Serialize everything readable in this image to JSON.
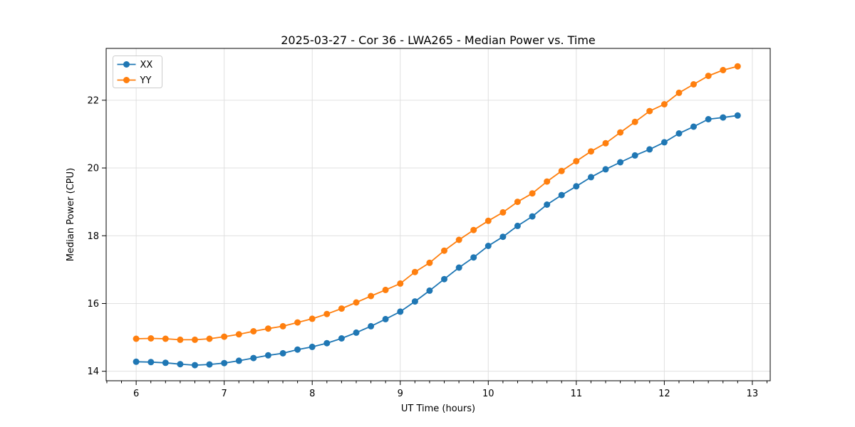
{
  "window": {
    "background": "#ffffff"
  },
  "chart_data": {
    "type": "line",
    "title": "2025-03-27 - Cor 36 - LWA265 - Median Power vs. Time",
    "xlabel": "UT Time (hours)",
    "ylabel": "Median Power (CPU)",
    "grid": true,
    "legend_position": "upper-left",
    "xlim": [
      5.659,
      13.203
    ],
    "ylim": [
      13.72,
      23.53
    ],
    "x_ticks": [
      6,
      7,
      8,
      9,
      10,
      11,
      12,
      13
    ],
    "y_ticks": [
      14,
      16,
      18,
      20,
      22
    ],
    "x_minor_tick_step": 0.1667,
    "marker": "circle",
    "x": [
      6.0,
      6.167,
      6.333,
      6.5,
      6.667,
      6.833,
      7.0,
      7.167,
      7.333,
      7.5,
      7.667,
      7.833,
      8.0,
      8.167,
      8.333,
      8.5,
      8.667,
      8.833,
      9.0,
      9.167,
      9.333,
      9.5,
      9.667,
      9.833,
      10.0,
      10.167,
      10.333,
      10.5,
      10.667,
      10.833,
      11.0,
      11.167,
      11.333,
      11.5,
      11.667,
      11.833,
      12.0,
      12.167,
      12.333,
      12.5,
      12.667,
      12.833
    ],
    "series": [
      {
        "name": "XX",
        "color": "#1f77b4",
        "values": [
          14.28,
          14.27,
          14.25,
          14.21,
          14.18,
          14.2,
          14.24,
          14.31,
          14.39,
          14.47,
          14.53,
          14.64,
          14.72,
          14.83,
          14.97,
          15.14,
          15.33,
          15.54,
          15.76,
          16.06,
          16.38,
          16.72,
          17.06,
          17.36,
          17.7,
          17.97,
          18.29,
          18.57,
          18.92,
          19.2,
          19.46,
          19.73,
          19.96,
          20.17,
          20.37,
          20.55,
          20.76,
          21.02,
          21.22,
          21.44,
          21.49,
          21.55
        ]
      },
      {
        "name": "YY",
        "color": "#ff7f0e",
        "values": [
          14.96,
          14.97,
          14.96,
          14.93,
          14.93,
          14.96,
          15.02,
          15.09,
          15.18,
          15.26,
          15.33,
          15.44,
          15.55,
          15.69,
          15.85,
          16.03,
          16.22,
          16.4,
          16.59,
          16.93,
          17.2,
          17.56,
          17.88,
          18.17,
          18.44,
          18.69,
          19.0,
          19.25,
          19.6,
          19.91,
          20.2,
          20.49,
          20.73,
          21.05,
          21.36,
          21.68,
          21.88,
          22.22,
          22.47,
          22.72,
          22.89,
          23.0
        ]
      }
    ]
  }
}
